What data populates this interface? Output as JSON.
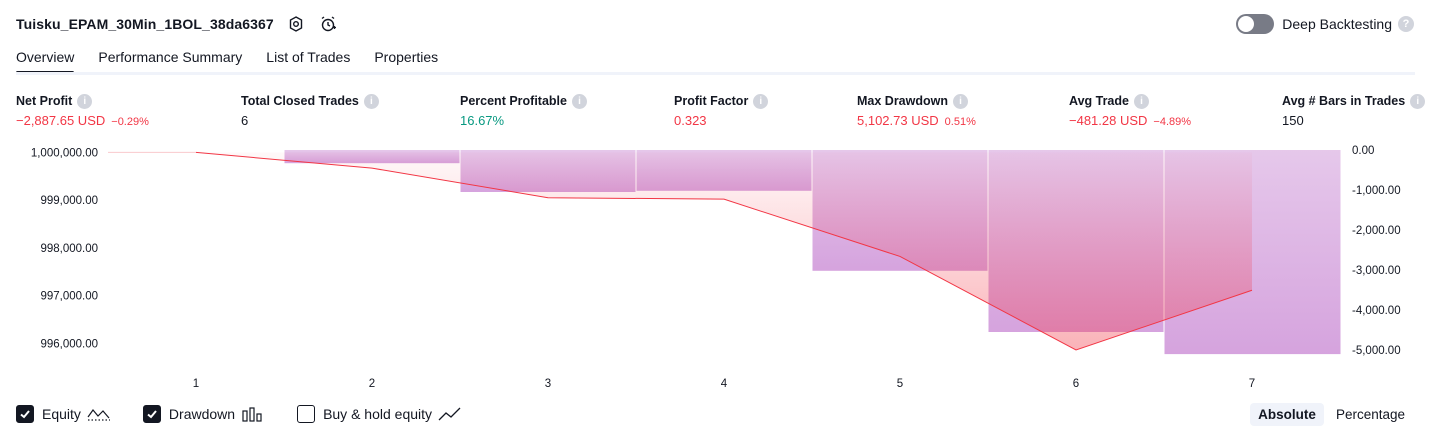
{
  "header": {
    "title": "Tuisku_EPAM_30Min_1BOL_38da6367",
    "deep_backtesting_label": "Deep Backtesting",
    "deep_backtesting_enabled": false
  },
  "tabs": [
    {
      "label": "Overview",
      "active": true
    },
    {
      "label": "Performance Summary",
      "active": false
    },
    {
      "label": "List of Trades",
      "active": false
    },
    {
      "label": "Properties",
      "active": false
    }
  ],
  "metrics": [
    {
      "label": "Net Profit",
      "value": "−2,887.65 USD",
      "sub": "−0.29%",
      "tone": "neg"
    },
    {
      "label": "Total Closed Trades",
      "value": "6",
      "sub": "",
      "tone": "neutral"
    },
    {
      "label": "Percent Profitable",
      "value": "16.67%",
      "sub": "",
      "tone": "pos"
    },
    {
      "label": "Profit Factor",
      "value": "0.323",
      "sub": "",
      "tone": "neg"
    },
    {
      "label": "Max Drawdown",
      "value": "5,102.73 USD",
      "sub": "0.51%",
      "tone": "neg"
    },
    {
      "label": "Avg Trade",
      "value": "−481.28 USD",
      "sub": "−4.89%",
      "tone": "neg"
    },
    {
      "label": "Avg # Bars in Trades",
      "value": "150",
      "sub": "",
      "tone": "neutral"
    }
  ],
  "chart_data": {
    "type": "line",
    "x": [
      1,
      2,
      3,
      4,
      5,
      6,
      7
    ],
    "x_tick_labels": [
      "1",
      "2",
      "3",
      "4",
      "5",
      "6",
      "7"
    ],
    "series": [
      {
        "name": "Equity",
        "type": "line",
        "axis": "left",
        "color": "#f23645",
        "values": [
          1000000.0,
          999670,
          999050,
          999020,
          997820,
          995860,
          997112
        ]
      },
      {
        "name": "Drawdown",
        "type": "bar",
        "axis": "right",
        "color": "#ce93d8",
        "values": [
          0,
          -330,
          -1050,
          -1020,
          -3020,
          -4550,
          -5102.73
        ]
      }
    ],
    "left_axis": {
      "ylim": [
        995650,
        1000050
      ],
      "ticks": [
        1000000,
        999000,
        998000,
        997000,
        996000
      ],
      "tick_labels": [
        "1,000,000.00",
        "999,000.00",
        "998,000.00",
        "997,000.00",
        "996,000.00"
      ]
    },
    "right_axis": {
      "ylim": [
        -5250,
        0
      ],
      "ticks": [
        0,
        -1000,
        -2000,
        -3000,
        -4000,
        -5000
      ],
      "tick_labels": [
        "0.00",
        "-1,000.00",
        "-2,000.00",
        "-3,000.00",
        "-4,000.00",
        "-5,000.00"
      ]
    },
    "grid": false,
    "legend": "bottom-left"
  },
  "legend": [
    {
      "label": "Equity",
      "checked": true,
      "icon": "area-line-icon"
    },
    {
      "label": "Drawdown",
      "checked": true,
      "icon": "bars-icon"
    },
    {
      "label": "Buy & hold equity",
      "checked": false,
      "icon": "line-icon"
    }
  ],
  "mode": {
    "options": [
      {
        "label": "Absolute",
        "active": true
      },
      {
        "label": "Percentage",
        "active": false
      }
    ]
  }
}
